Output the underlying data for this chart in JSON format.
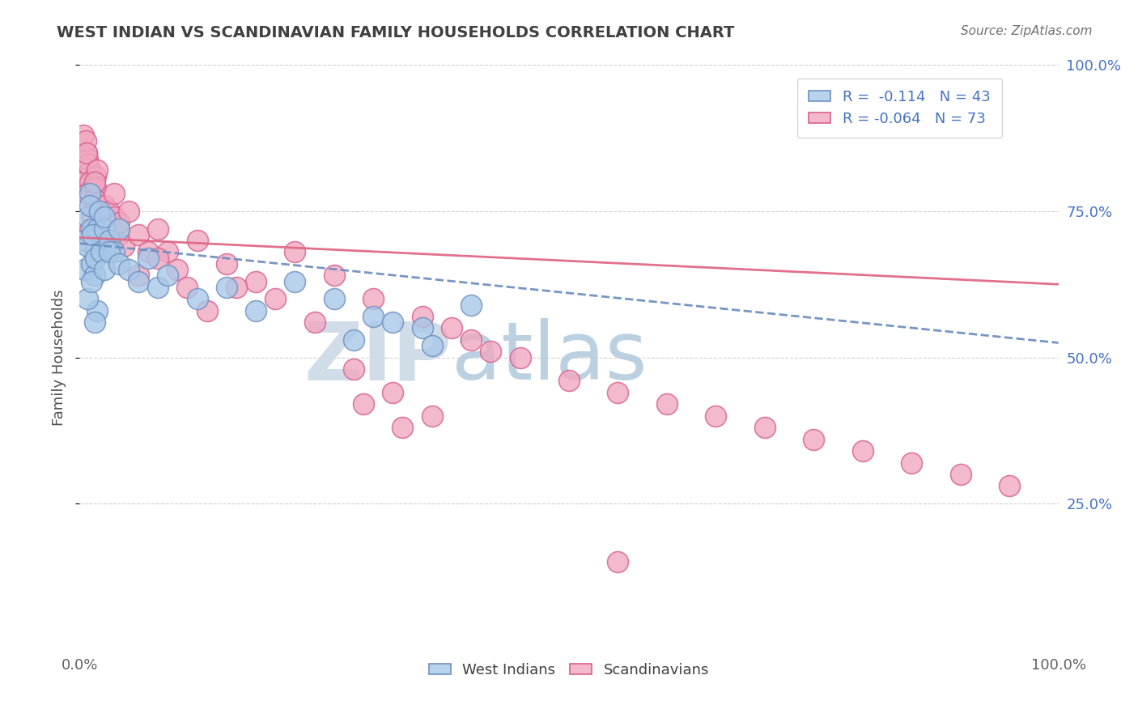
{
  "title": "WEST INDIAN VS SCANDINAVIAN FAMILY HOUSEHOLDS CORRELATION CHART",
  "source": "Source: ZipAtlas.com",
  "ylabel": "Family Households",
  "xlim": [
    0,
    1
  ],
  "ylim": [
    0,
    1
  ],
  "west_indian_R": -0.114,
  "west_indian_N": 43,
  "scandinavian_R": -0.064,
  "scandinavian_N": 73,
  "blue_color": "#a8c8e8",
  "pink_color": "#f0a8c0",
  "blue_edge": "#7090c0",
  "pink_edge": "#d86090",
  "legend_blue_fill": "#b8d4ec",
  "legend_pink_fill": "#f4b8cc",
  "trend_blue": "#7090c0",
  "trend_pink": "#e06888",
  "label_color": "#4472c4",
  "watermark_color": "#d0dce8",
  "background_color": "#ffffff",
  "grid_color": "#cccccc",
  "wi_trend_x0": 0.0,
  "wi_trend_y0": 0.695,
  "wi_trend_x1": 1.0,
  "wi_trend_y1": 0.525,
  "sc_trend_x0": 0.0,
  "sc_trend_y0": 0.705,
  "sc_trend_x1": 1.0,
  "sc_trend_y1": 0.625,
  "west_indians_x": [
    0.005,
    0.008,
    0.01,
    0.012,
    0.015,
    0.005,
    0.008,
    0.012,
    0.015,
    0.018,
    0.01,
    0.013,
    0.016,
    0.02,
    0.022,
    0.025,
    0.018,
    0.008,
    0.012,
    0.015,
    0.025,
    0.03,
    0.035,
    0.04,
    0.025,
    0.03,
    0.04,
    0.05,
    0.06,
    0.07,
    0.08,
    0.09,
    0.12,
    0.15,
    0.18,
    0.22,
    0.26,
    0.3,
    0.35,
    0.4,
    0.28,
    0.32,
    0.36
  ],
  "west_indians_y": [
    0.7,
    0.74,
    0.78,
    0.72,
    0.68,
    0.65,
    0.69,
    0.66,
    0.64,
    0.72,
    0.76,
    0.71,
    0.67,
    0.75,
    0.68,
    0.72,
    0.58,
    0.6,
    0.63,
    0.56,
    0.74,
    0.7,
    0.68,
    0.72,
    0.65,
    0.68,
    0.66,
    0.65,
    0.63,
    0.67,
    0.62,
    0.64,
    0.6,
    0.62,
    0.58,
    0.63,
    0.6,
    0.57,
    0.55,
    0.59,
    0.53,
    0.56,
    0.52
  ],
  "scandinavians_x": [
    0.004,
    0.007,
    0.01,
    0.004,
    0.008,
    0.012,
    0.006,
    0.009,
    0.013,
    0.016,
    0.007,
    0.01,
    0.014,
    0.018,
    0.008,
    0.012,
    0.016,
    0.02,
    0.01,
    0.015,
    0.02,
    0.025,
    0.015,
    0.02,
    0.025,
    0.03,
    0.025,
    0.03,
    0.035,
    0.04,
    0.035,
    0.04,
    0.045,
    0.05,
    0.06,
    0.07,
    0.08,
    0.09,
    0.1,
    0.12,
    0.15,
    0.18,
    0.22,
    0.26,
    0.3,
    0.35,
    0.4,
    0.45,
    0.5,
    0.6,
    0.7,
    0.8,
    0.9,
    0.55,
    0.65,
    0.75,
    0.85,
    0.95,
    0.38,
    0.42,
    0.28,
    0.32,
    0.36,
    0.2,
    0.24,
    0.16,
    0.13,
    0.11,
    0.08,
    0.06,
    0.33,
    0.29,
    0.55
  ],
  "scandinavians_y": [
    0.88,
    0.85,
    0.82,
    0.8,
    0.84,
    0.79,
    0.87,
    0.83,
    0.78,
    0.81,
    0.85,
    0.8,
    0.76,
    0.82,
    0.78,
    0.74,
    0.79,
    0.75,
    0.72,
    0.77,
    0.73,
    0.76,
    0.8,
    0.74,
    0.7,
    0.75,
    0.72,
    0.68,
    0.74,
    0.71,
    0.78,
    0.73,
    0.69,
    0.75,
    0.71,
    0.68,
    0.72,
    0.68,
    0.65,
    0.7,
    0.66,
    0.63,
    0.68,
    0.64,
    0.6,
    0.57,
    0.53,
    0.5,
    0.46,
    0.42,
    0.38,
    0.34,
    0.3,
    0.44,
    0.4,
    0.36,
    0.32,
    0.28,
    0.55,
    0.51,
    0.48,
    0.44,
    0.4,
    0.6,
    0.56,
    0.62,
    0.58,
    0.62,
    0.67,
    0.64,
    0.38,
    0.42,
    0.15
  ]
}
